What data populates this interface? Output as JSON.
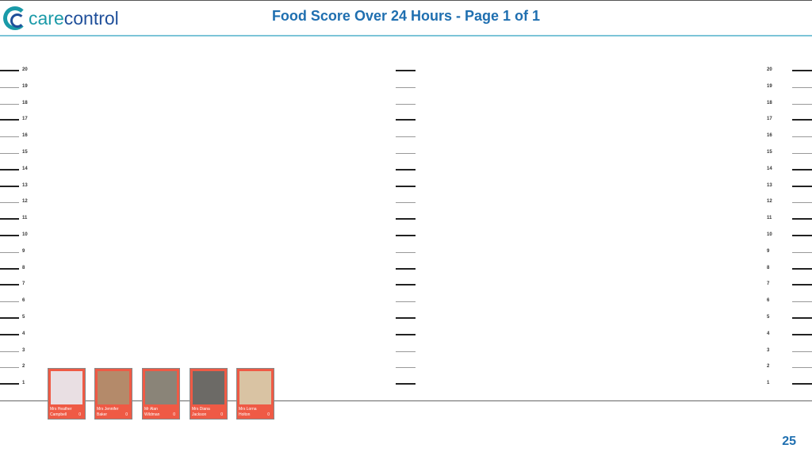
{
  "header": {
    "logo_text_1": "care",
    "logo_text_2": "control",
    "title": "Food Score Over 24 Hours - Page 1 of 1"
  },
  "scale": {
    "values": [
      20,
      19,
      18,
      17,
      16,
      15,
      14,
      13,
      12,
      11,
      10,
      9,
      8,
      7,
      6,
      5,
      4,
      3,
      2,
      1
    ],
    "thick": [
      20,
      17,
      14,
      13,
      11,
      10,
      8,
      7,
      5,
      4,
      1
    ]
  },
  "residents": [
    {
      "name": "Mrs Heather Campbell",
      "score": "0",
      "photo_color": "#e9dfe3"
    },
    {
      "name": "Mrs Jennifer Baker",
      "score": "0",
      "photo_color": "#b48a6a"
    },
    {
      "name": "Mr Alan Wildman",
      "score": "0",
      "photo_color": "#8a8478"
    },
    {
      "name": "Mrs Diana Jackson",
      "score": "0",
      "photo_color": "#6c6a66"
    },
    {
      "name": "Mrs Lorna Holton",
      "score": "0",
      "photo_color": "#d9c3a3"
    }
  ],
  "footer": {
    "page_number": "25"
  }
}
